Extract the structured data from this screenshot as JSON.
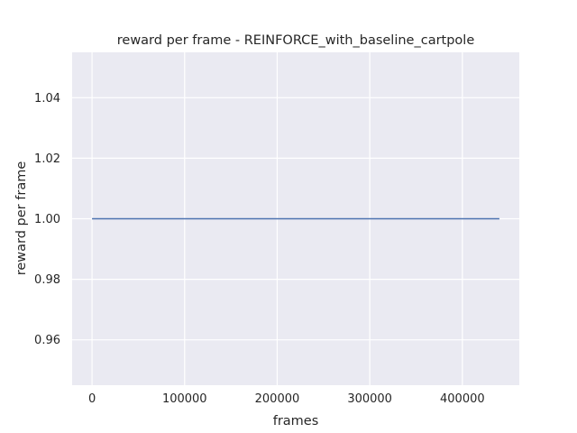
{
  "chart_data": {
    "type": "line",
    "title": "reward per frame - REINFORCE_with_baseline_cartpole",
    "xlabel": "frames",
    "ylabel": "reward per frame",
    "xlim": [
      -21500,
      461500
    ],
    "ylim": [
      0.945,
      1.055
    ],
    "xticks": [
      0,
      100000,
      200000,
      300000,
      400000
    ],
    "xtick_labels": [
      "0",
      "100000",
      "200000",
      "300000",
      "400000"
    ],
    "yticks": [
      0.96,
      0.98,
      1.0,
      1.02,
      1.04
    ],
    "ytick_labels": [
      "0.96",
      "0.98",
      "1.00",
      "1.02",
      "1.04"
    ],
    "grid": true,
    "series": [
      {
        "x": [
          0,
          440000
        ],
        "y": [
          1.0,
          1.0
        ]
      }
    ],
    "colors": {
      "plot_background": "#eaeaf2",
      "grid": "#ffffff",
      "line": "#4c72b0",
      "text": "#262626"
    }
  }
}
